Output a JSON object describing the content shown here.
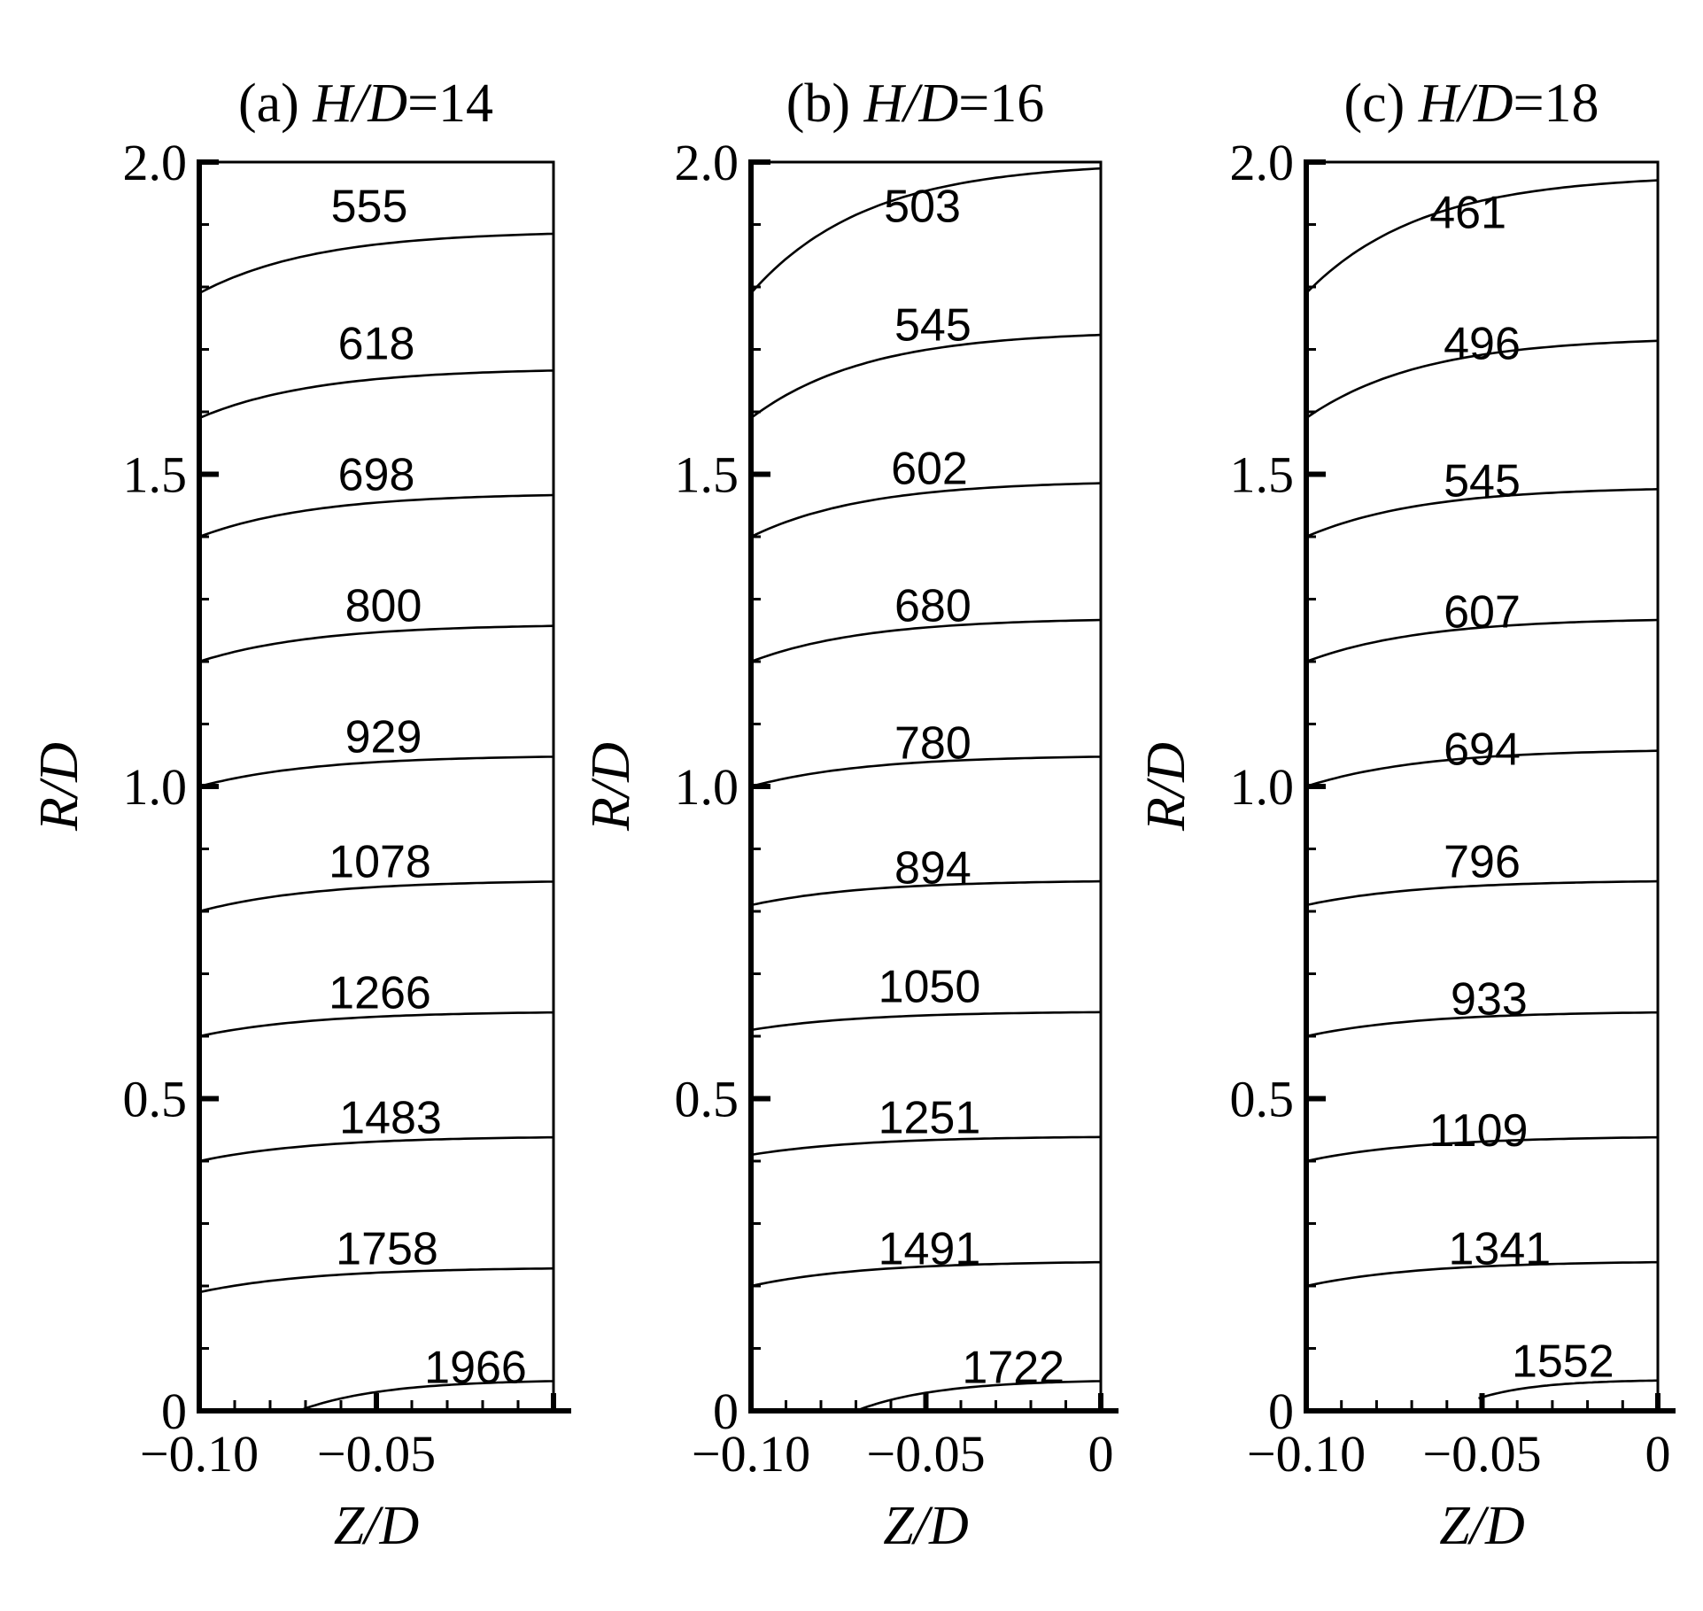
{
  "chart_data": [
    {
      "type": "line",
      "title_prefix": "(a) ",
      "title_var": "H/D",
      "title_suffix": "=14",
      "xlabel": "Z/D",
      "ylabel": "R/D",
      "xlim": [
        -0.1,
        0.0
      ],
      "ylim": [
        0.0,
        2.0
      ],
      "xticks": [
        -0.1,
        -0.05
      ],
      "xtick_labels": [
        "−0.10",
        "−0.05"
      ],
      "yticks": [
        0.0,
        0.5,
        1.0,
        1.5,
        2.0
      ],
      "ytick_labels": [
        "0",
        "0.5",
        "1.0",
        "1.5",
        "2.0"
      ],
      "contours": [
        {
          "label": "555",
          "r0": 1.79,
          "r1": 1.89,
          "x_start": -0.1,
          "label_x": -0.052,
          "label_r": 1.93
        },
        {
          "label": "618",
          "r0": 1.59,
          "r1": 1.67,
          "x_start": -0.1,
          "label_x": -0.05,
          "label_r": 1.71
        },
        {
          "label": "698",
          "r0": 1.4,
          "r1": 1.47,
          "x_start": -0.1,
          "label_x": -0.05,
          "label_r": 1.5
        },
        {
          "label": "800",
          "r0": 1.2,
          "r1": 1.26,
          "x_start": -0.1,
          "label_x": -0.048,
          "label_r": 1.29
        },
        {
          "label": "929",
          "r0": 1.0,
          "r1": 1.05,
          "x_start": -0.1,
          "label_x": -0.048,
          "label_r": 1.08
        },
        {
          "label": "1078",
          "r0": 0.8,
          "r1": 0.85,
          "x_start": -0.1,
          "label_x": -0.049,
          "label_r": 0.88
        },
        {
          "label": "1266",
          "r0": 0.6,
          "r1": 0.64,
          "x_start": -0.1,
          "label_x": -0.049,
          "label_r": 0.67
        },
        {
          "label": "1483",
          "r0": 0.4,
          "r1": 0.44,
          "x_start": -0.1,
          "label_x": -0.046,
          "label_r": 0.47
        },
        {
          "label": "1758",
          "r0": 0.19,
          "r1": 0.23,
          "x_start": -0.1,
          "label_x": -0.047,
          "label_r": 0.26
        },
        {
          "label": "1966",
          "r0": 0.0,
          "r1": 0.05,
          "x_start": -0.072,
          "label_x": -0.022,
          "label_r": 0.07
        }
      ]
    },
    {
      "type": "line",
      "title_prefix": "(b) ",
      "title_var": "H/D",
      "title_suffix": "=16",
      "xlabel": "Z/D",
      "ylabel": "R/D",
      "xlim": [
        -0.1,
        0.0
      ],
      "ylim": [
        0.0,
        2.0
      ],
      "xticks": [
        -0.1,
        -0.05,
        0.0
      ],
      "xtick_labels": [
        "−0.10",
        "−0.05",
        "0"
      ],
      "yticks": [
        0.0,
        0.5,
        1.0,
        1.5,
        2.0
      ],
      "ytick_labels": [
        "0",
        "0.5",
        "1.0",
        "1.5",
        "2.0"
      ],
      "contours": [
        {
          "label": "503",
          "r0": 1.79,
          "r1": 2.0,
          "x_start": -0.1,
          "label_x": -0.051,
          "label_r": 1.93
        },
        {
          "label": "545",
          "r0": 1.59,
          "r1": 1.73,
          "x_start": -0.1,
          "label_x": -0.048,
          "label_r": 1.74
        },
        {
          "label": "602",
          "r0": 1.4,
          "r1": 1.49,
          "x_start": -0.1,
          "label_x": -0.049,
          "label_r": 1.51
        },
        {
          "label": "680",
          "r0": 1.2,
          "r1": 1.27,
          "x_start": -0.1,
          "label_x": -0.048,
          "label_r": 1.29
        },
        {
          "label": "780",
          "r0": 1.0,
          "r1": 1.05,
          "x_start": -0.1,
          "label_x": -0.048,
          "label_r": 1.07
        },
        {
          "label": "894",
          "r0": 0.81,
          "r1": 0.85,
          "x_start": -0.1,
          "label_x": -0.048,
          "label_r": 0.87
        },
        {
          "label": "1050",
          "r0": 0.61,
          "r1": 0.64,
          "x_start": -0.1,
          "label_x": -0.049,
          "label_r": 0.68
        },
        {
          "label": "1251",
          "r0": 0.41,
          "r1": 0.44,
          "x_start": -0.1,
          "label_x": -0.049,
          "label_r": 0.47
        },
        {
          "label": "1491",
          "r0": 0.2,
          "r1": 0.24,
          "x_start": -0.1,
          "label_x": -0.049,
          "label_r": 0.26
        },
        {
          "label": "1722",
          "r0": 0.0,
          "r1": 0.05,
          "x_start": -0.07,
          "label_x": -0.025,
          "label_r": 0.07
        }
      ]
    },
    {
      "type": "line",
      "title_prefix": "(c) ",
      "title_var": "H/D",
      "title_suffix": "=18",
      "xlabel": "Z/D",
      "ylabel": "R/D",
      "xlim": [
        -0.1,
        0.0
      ],
      "ylim": [
        0.0,
        2.0
      ],
      "xticks": [
        -0.1,
        -0.05,
        0.0
      ],
      "xtick_labels": [
        "−0.10",
        "−0.05",
        "0"
      ],
      "yticks": [
        0.0,
        0.5,
        1.0,
        1.5,
        2.0
      ],
      "ytick_labels": [
        "0",
        "0.5",
        "1.0",
        "1.5",
        "2.0"
      ],
      "contours": [
        {
          "label": "461",
          "r0": 1.79,
          "r1": 1.98,
          "x_start": -0.1,
          "label_x": -0.054,
          "label_r": 1.92
        },
        {
          "label": "496",
          "r0": 1.59,
          "r1": 1.72,
          "x_start": -0.1,
          "label_x": -0.05,
          "label_r": 1.71
        },
        {
          "label": "545",
          "r0": 1.4,
          "r1": 1.48,
          "x_start": -0.1,
          "label_x": -0.05,
          "label_r": 1.49
        },
        {
          "label": "607",
          "r0": 1.2,
          "r1": 1.27,
          "x_start": -0.1,
          "label_x": -0.05,
          "label_r": 1.28
        },
        {
          "label": "694",
          "r0": 1.0,
          "r1": 1.06,
          "x_start": -0.1,
          "label_x": -0.05,
          "label_r": 1.06
        },
        {
          "label": "796",
          "r0": 0.81,
          "r1": 0.85,
          "x_start": -0.1,
          "label_x": -0.05,
          "label_r": 0.88
        },
        {
          "label": "933",
          "r0": 0.6,
          "r1": 0.64,
          "x_start": -0.1,
          "label_x": -0.048,
          "label_r": 0.66
        },
        {
          "label": "1109",
          "r0": 0.4,
          "r1": 0.44,
          "x_start": -0.1,
          "label_x": -0.051,
          "label_r": 0.45
        },
        {
          "label": "1341",
          "r0": 0.2,
          "r1": 0.24,
          "x_start": -0.1,
          "label_x": -0.045,
          "label_r": 0.26
        },
        {
          "label": "1552",
          "r0": 0.02,
          "r1": 0.05,
          "x_start": -0.051,
          "label_x": -0.027,
          "label_r": 0.08
        }
      ]
    }
  ]
}
